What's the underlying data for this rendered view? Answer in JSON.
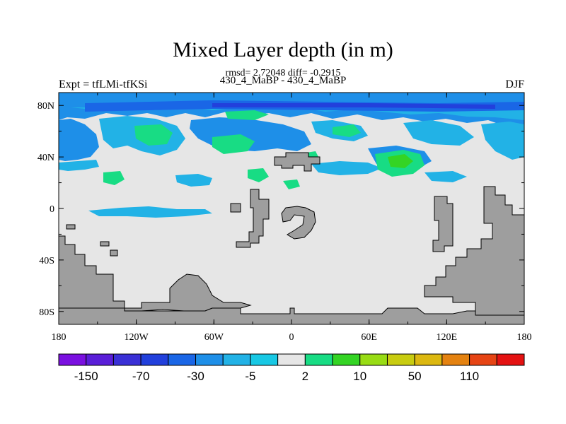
{
  "title": "Mixed Layer depth (in m)",
  "stats": "rmsd= 2.72048  diff= -0.2915",
  "subtitle": "430_4_MaBP - 430_4_MaBP",
  "left_label": "Expt = tfLMi-tfKSi",
  "right_label": "DJF",
  "chart_data": {
    "type": "heatmap",
    "title": "Mixed Layer depth (in m)",
    "x_ticks": [
      "180",
      "120W",
      "60W",
      "0",
      "60E",
      "120E",
      "180"
    ],
    "x_tick_values": [
      -180,
      -120,
      -60,
      0,
      60,
      120,
      180
    ],
    "y_ticks": [
      "80N",
      "40N",
      "0",
      "40S",
      "80S"
    ],
    "y_tick_values": [
      80,
      40,
      0,
      -40,
      -80
    ],
    "xlim": [
      -180,
      180
    ],
    "ylim": [
      -90,
      90
    ],
    "colorbar": {
      "colors": [
        "#7a10e0",
        "#5a1ed8",
        "#3a30d6",
        "#2240dc",
        "#1a66e6",
        "#1e8fe8",
        "#22b2e6",
        "#18c8e4",
        "#e6e6e6",
        "#18dc84",
        "#34d424",
        "#98dc14",
        "#c8cc10",
        "#dcb810",
        "#e48210",
        "#e64414",
        "#e41212"
      ],
      "labels": [
        "-150",
        "-70",
        "-30",
        "-5",
        "2",
        "10",
        "50",
        "110"
      ]
    },
    "fields": {
      "background": "#e6e6e6",
      "land": "#9e9e9e",
      "north_band_levels": [
        "#1e8fe8",
        "#22b2e6",
        "#1a66e6",
        "#2240dc"
      ],
      "positive_anomaly_color": "#18dc84",
      "strong_positive_color": "#34d424"
    }
  }
}
